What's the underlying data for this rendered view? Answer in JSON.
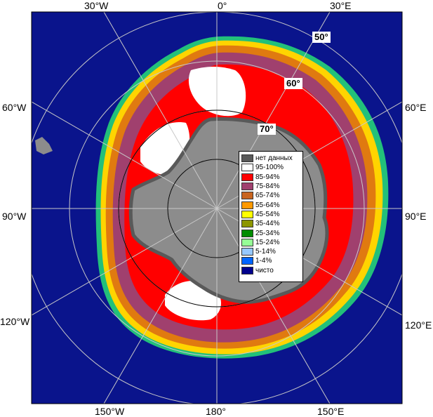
{
  "map": {
    "longitude_labels": {
      "w30": "30°W",
      "zero": "0°",
      "e30": "30°E",
      "w60": "60°W",
      "e60": "60°E",
      "w90": "90°W",
      "e90": "90°E",
      "w120": "120°W",
      "e120": "120°E",
      "w150": "150°W",
      "lon180": "180°",
      "e150": "150°E"
    },
    "latitude_labels": {
      "lat50": "50°",
      "lat60": "60°",
      "lat70": "70°"
    }
  },
  "legend": {
    "items": [
      {
        "label": "нет данных",
        "color": "#595959"
      },
      {
        "label": "95-100%",
        "color": "#ffffff"
      },
      {
        "label": "85-94%",
        "color": "#ff0000"
      },
      {
        "label": "75-84%",
        "color": "#a0406e"
      },
      {
        "label": "65-74%",
        "color": "#c8641e"
      },
      {
        "label": "55-64%",
        "color": "#ff9900"
      },
      {
        "label": "45-54%",
        "color": "#ffff00"
      },
      {
        "label": "35-44%",
        "color": "#8c9600"
      },
      {
        "label": "25-34%",
        "color": "#008c00"
      },
      {
        "label": "15-24%",
        "color": "#96ff96"
      },
      {
        "label": "5-14%",
        "color": "#96c8ff"
      },
      {
        "label": "1-4%",
        "color": "#0064ff"
      },
      {
        "label": "чисто",
        "color": "#00008c"
      }
    ]
  },
  "colors": {
    "ocean": "#0a148c",
    "land": "#8c8c8c",
    "grid": "#c8c8c8",
    "frame": "#000000"
  }
}
